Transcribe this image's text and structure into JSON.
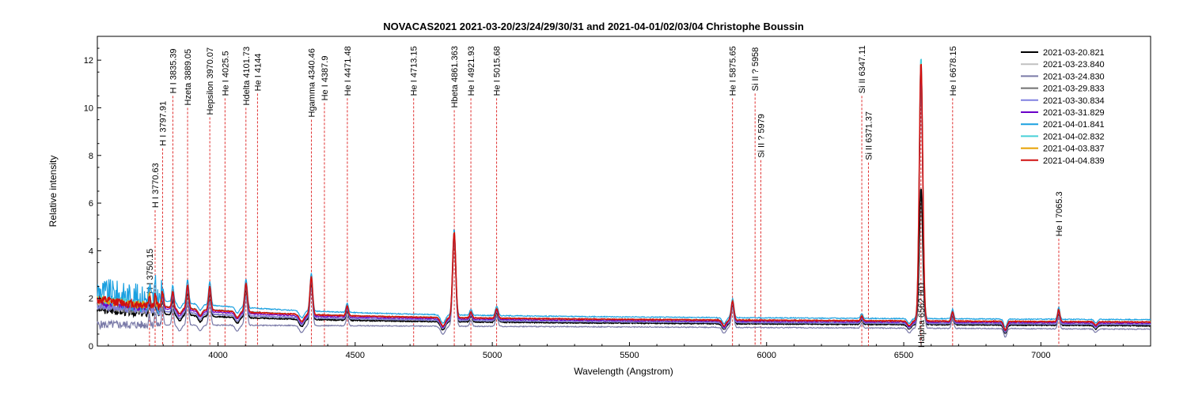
{
  "chart_data": {
    "type": "line",
    "title": "NOVACAS2021   2021-03-20/23/24/29/30/31 and 2021-04-01/02/03/04   Christophe Boussin",
    "xlabel": "Wavelength (Angstrom)",
    "ylabel": "Relative intensity",
    "xlim": [
      3560,
      7400
    ],
    "ylim": [
      0,
      13
    ],
    "xticks": [
      4000,
      4500,
      5000,
      5500,
      6000,
      6500,
      7000
    ],
    "yticks": [
      0,
      2,
      4,
      6,
      8,
      10,
      12
    ],
    "grid": false,
    "legend_position": "top-right",
    "annotation_color": "#e03030",
    "annotations": [
      {
        "label": "H I 3750.15",
        "x": 3750.15,
        "y": 2.2
      },
      {
        "label": "H I 3770.63",
        "x": 3770.63,
        "y": 5.8
      },
      {
        "label": "H I 3797.91",
        "x": 3797.91,
        "y": 8.4
      },
      {
        "label": "H I 3835.39",
        "x": 3835.39,
        "y": 10.6
      },
      {
        "label": "Hzeta 3889.05",
        "x": 3889.05,
        "y": 10.1
      },
      {
        "label": "Hepsilon 3970.07",
        "x": 3970.07,
        "y": 9.7
      },
      {
        "label": "He I 4025.5",
        "x": 4025.5,
        "y": 10.5
      },
      {
        "label": "Hdelta 4101.73",
        "x": 4101.73,
        "y": 10.1
      },
      {
        "label": "He I 4144",
        "x": 4144,
        "y": 10.7
      },
      {
        "label": "Hgamma 4340.46",
        "x": 4340.46,
        "y": 9.6
      },
      {
        "label": "He I 4387.9",
        "x": 4387.9,
        "y": 10.3
      },
      {
        "label": "He I 4471.48",
        "x": 4471.48,
        "y": 10.5
      },
      {
        "label": "He I 4713.15",
        "x": 4713.15,
        "y": 10.5
      },
      {
        "label": "Hbeta 4861.363",
        "x": 4861.363,
        "y": 10.0
      },
      {
        "label": "He I 4921.93",
        "x": 4921.93,
        "y": 10.5
      },
      {
        "label": "He I 5015.68",
        "x": 5015.68,
        "y": 10.5
      },
      {
        "label": "He I 5875.65",
        "x": 5875.65,
        "y": 10.5
      },
      {
        "label": "Si II ? 5958",
        "x": 5958,
        "y": 10.7
      },
      {
        "label": "Si II ? 5979",
        "x": 5979,
        "y": 7.9
      },
      {
        "label": "Si II 6347.11",
        "x": 6347.11,
        "y": 10.6
      },
      {
        "label": "Si II 6371.37",
        "x": 6371.37,
        "y": 7.8
      },
      {
        "label": "Halpha 6562.801",
        "x": 6562.801,
        "y": -0.1,
        "below": true
      },
      {
        "label": "He I 6678.15",
        "x": 6678.15,
        "y": 10.5
      },
      {
        "label": "He I 7065.3",
        "x": 7065.3,
        "y": 4.6
      }
    ],
    "series": [
      {
        "name": "2021-03-20.821",
        "color": "#000000",
        "base": 1.0,
        "blue": 0.5,
        "scale": 0.52
      },
      {
        "name": "2021-03-23.840",
        "color": "#c0c0c0",
        "base": 1.05,
        "blue": 0.6,
        "scale": 0.98
      },
      {
        "name": "2021-03-24.830",
        "color": "#7a7aa8",
        "base": 0.85,
        "blue": 0.0,
        "scale": 0.9
      },
      {
        "name": "2021-03-29.833",
        "color": "#707070",
        "base": 1.05,
        "blue": 0.6,
        "scale": 0.92
      },
      {
        "name": "2021-03-30.834",
        "color": "#8080e0",
        "base": 1.05,
        "blue": 0.6,
        "scale": 0.95
      },
      {
        "name": "2021-03-31.829",
        "color": "#6a00c8",
        "base": 1.1,
        "blue": 0.7,
        "scale": 0.97
      },
      {
        "name": "2021-04-01.841",
        "color": "#1aa0e0",
        "base": 1.25,
        "blue": 1.0,
        "scale": 1.0
      },
      {
        "name": "2021-04-02.832",
        "color": "#48d0d8",
        "base": 1.15,
        "blue": 0.8,
        "scale": 1.01
      },
      {
        "name": "2021-04-03.837",
        "color": "#e8a000",
        "base": 1.15,
        "blue": 0.75,
        "scale": 0.99
      },
      {
        "name": "2021-04-04.839",
        "color": "#d01010",
        "base": 1.15,
        "blue": 0.75,
        "scale": 0.99
      }
    ],
    "line_profile": [
      {
        "center": 3750,
        "height": 0.5,
        "width": 4
      },
      {
        "center": 3771,
        "height": 0.5,
        "width": 4
      },
      {
        "center": 3798,
        "height": 0.6,
        "width": 5
      },
      {
        "center": 3835,
        "height": 0.7,
        "width": 5
      },
      {
        "center": 3889,
        "height": 1.0,
        "width": 6
      },
      {
        "center": 3970,
        "height": 1.0,
        "width": 6
      },
      {
        "center": 4102,
        "height": 1.2,
        "width": 7
      },
      {
        "center": 4340,
        "height": 1.6,
        "width": 7
      },
      {
        "center": 4471,
        "height": 0.4,
        "width": 6
      },
      {
        "center": 4861,
        "height": 3.6,
        "width": 8
      },
      {
        "center": 4922,
        "height": 0.25,
        "width": 6
      },
      {
        "center": 5016,
        "height": 0.4,
        "width": 7
      },
      {
        "center": 5876,
        "height": 0.8,
        "width": 7
      },
      {
        "center": 6347,
        "height": 0.2,
        "width": 6
      },
      {
        "center": 6563,
        "height": 11.0,
        "width": 9
      },
      {
        "center": 6678,
        "height": 0.4,
        "width": 6
      },
      {
        "center": 7065,
        "height": 0.5,
        "width": 6
      }
    ],
    "absorption_profile": [
      {
        "center": 3860,
        "depth": 0.25,
        "width": 10
      },
      {
        "center": 3935,
        "depth": 0.25,
        "width": 10
      },
      {
        "center": 4070,
        "depth": 0.25,
        "width": 10
      },
      {
        "center": 4305,
        "depth": 0.3,
        "width": 12
      },
      {
        "center": 4820,
        "depth": 0.35,
        "width": 12
      },
      {
        "center": 5845,
        "depth": 0.25,
        "width": 10
      },
      {
        "center": 6520,
        "depth": 0.2,
        "width": 10
      },
      {
        "center": 6870,
        "depth": 0.35,
        "width": 8
      },
      {
        "center": 7200,
        "depth": 0.15,
        "width": 8
      }
    ]
  }
}
